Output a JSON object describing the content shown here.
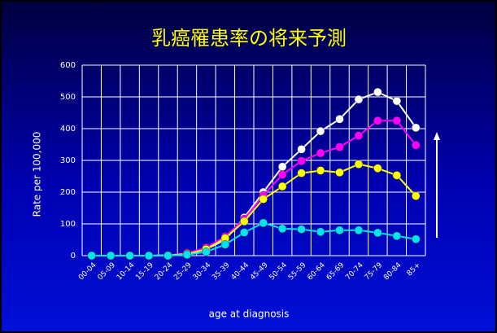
{
  "chart_data": {
    "type": "line",
    "title": "乳癌罹患率の将来予測",
    "y_label": "Rate per 100,000",
    "x_label": "age at diagnosis",
    "categories": [
      "00-04",
      "05-09",
      "10-14",
      "15-19",
      "20-24",
      "25-29",
      "30-34",
      "35-39",
      "40-44",
      "45-49",
      "50-54",
      "55-59",
      "60-64",
      "65-69",
      "70-74",
      "75-79",
      "80-84",
      "85+"
    ],
    "series": [
      {
        "color": "#ffffff",
        "values": [
          0,
          0,
          0,
          0,
          1,
          5,
          20,
          50,
          120,
          200,
          280,
          335,
          392,
          430,
          492,
          515,
          487,
          403
        ]
      },
      {
        "color": "#ff00ff",
        "values": [
          0,
          0,
          0,
          0,
          1,
          8,
          25,
          60,
          115,
          190,
          255,
          298,
          323,
          342,
          378,
          425,
          425,
          348
        ]
      },
      {
        "color": "#ffff00",
        "values": [
          0,
          0,
          0,
          0,
          1,
          5,
          20,
          55,
          108,
          178,
          218,
          260,
          268,
          262,
          288,
          275,
          253,
          188
        ]
      },
      {
        "color": "#00e5ee",
        "values": [
          0,
          0,
          0,
          0,
          0,
          3,
          12,
          35,
          73,
          103,
          85,
          83,
          75,
          80,
          80,
          72,
          62,
          52
        ]
      }
    ],
    "ylim": [
      0,
      600
    ],
    "yticks": [
      0,
      100,
      200,
      300,
      400,
      500,
      600
    ],
    "grid": true
  }
}
